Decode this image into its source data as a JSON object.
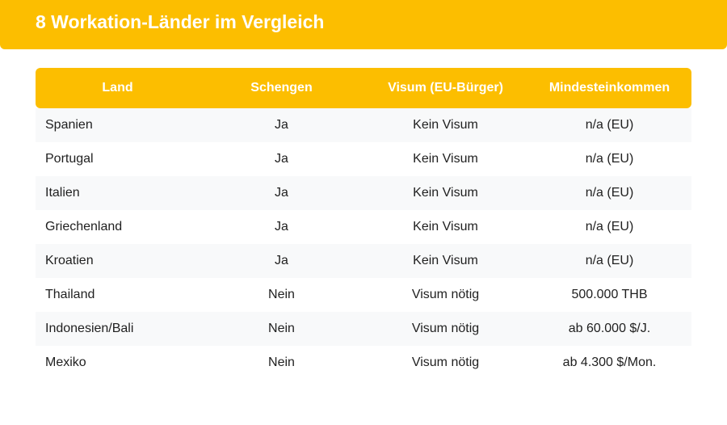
{
  "header": {
    "title": "8 Workation-Länder im Vergleich"
  },
  "table": {
    "columns": [
      "Land",
      "Schengen",
      "Visum (EU-Bürger)",
      "Mindesteinkommen"
    ],
    "rows": [
      [
        "Spanien",
        "Ja",
        "Kein Visum",
        "n/a (EU)"
      ],
      [
        "Portugal",
        "Ja",
        "Kein Visum",
        "n/a (EU)"
      ],
      [
        "Italien",
        "Ja",
        "Kein Visum",
        "n/a (EU)"
      ],
      [
        "Griechenland",
        "Ja",
        "Kein Visum",
        "n/a (EU)"
      ],
      [
        "Kroatien",
        "Ja",
        "Kein Visum",
        "n/a (EU)"
      ],
      [
        "Thailand",
        "Nein",
        "Visum nötig",
        "500.000 THB"
      ],
      [
        "Indonesien/Bali",
        "Nein",
        "Visum nötig",
        "ab 60.000 $/J."
      ],
      [
        "Mexiko",
        "Nein",
        "Visum nötig",
        "ab 4.300 $/Mon."
      ]
    ]
  },
  "colors": {
    "accent": "#fcbe00",
    "header_text": "#ffffff",
    "stripe": "#f8f9fa"
  }
}
